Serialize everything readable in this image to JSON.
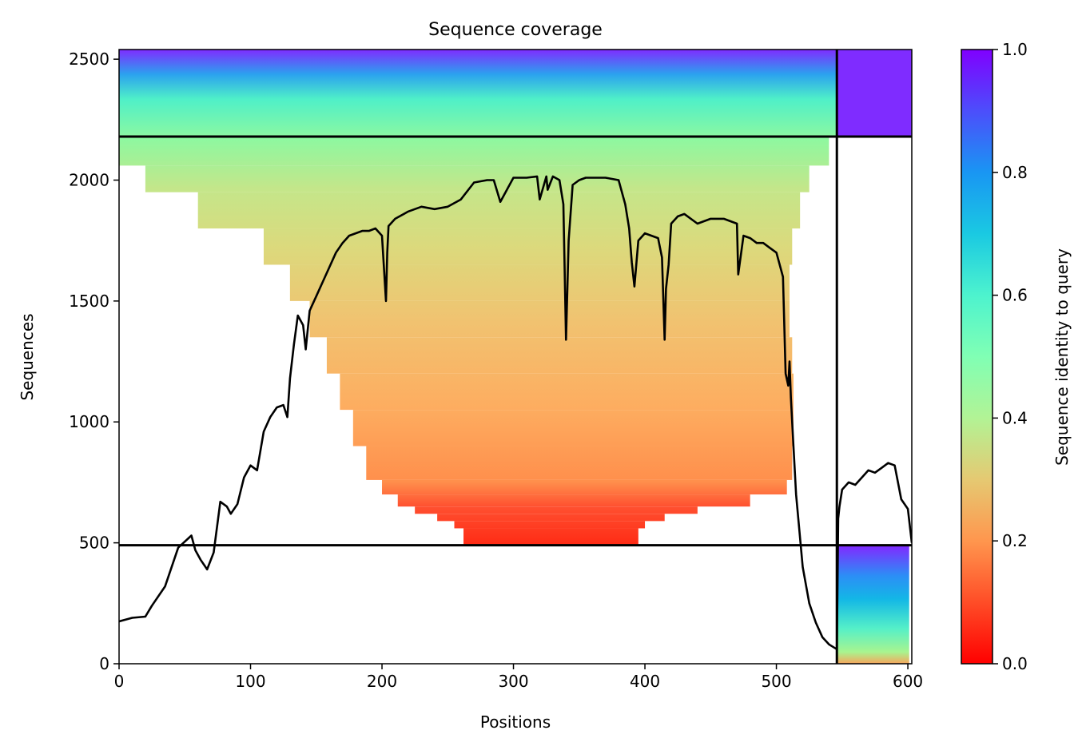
{
  "chart_data": {
    "type": "heatmap",
    "title": "Sequence coverage",
    "xlabel": "Positions",
    "ylabel": "Sequences",
    "xlim": [
      0,
      603
    ],
    "ylim": [
      0,
      2540
    ],
    "xticks": [
      "0",
      "100",
      "200",
      "300",
      "400",
      "500",
      "600"
    ],
    "yticks": [
      "0",
      "500",
      "1000",
      "1500",
      "2000",
      "2500"
    ],
    "grid": false,
    "colorbar": {
      "label": "Sequence identity to query",
      "colormap": "rainbow",
      "range": [
        0.0,
        1.0
      ],
      "ticks": [
        "0.0",
        "0.2",
        "0.4",
        "0.6",
        "0.8",
        "1.0"
      ]
    },
    "segment_boundaries": {
      "positions": [
        546
      ],
      "sequences": [
        490,
        2180
      ]
    },
    "coverage_line": {
      "color": "#000000",
      "x": [
        0,
        10,
        20,
        25,
        35,
        45,
        55,
        58,
        62,
        67,
        72,
        77,
        82,
        85,
        90,
        95,
        100,
        105,
        110,
        115,
        120,
        125,
        128,
        130,
        133,
        136,
        140,
        142,
        145,
        150,
        155,
        160,
        165,
        170,
        175,
        180,
        185,
        190,
        195,
        200,
        203,
        204,
        205,
        210,
        220,
        230,
        240,
        250,
        260,
        270,
        280,
        285,
        290,
        300,
        310,
        318,
        320,
        325,
        326,
        330,
        335,
        338,
        340,
        342,
        345,
        350,
        355,
        360,
        370,
        380,
        385,
        388,
        390,
        392,
        395,
        400,
        410,
        413,
        415,
        416,
        418,
        420,
        425,
        430,
        440,
        450,
        460,
        470,
        471,
        475,
        480,
        485,
        490,
        495,
        500,
        505,
        507,
        509,
        510,
        511,
        513,
        515,
        520,
        525,
        530,
        535,
        540,
        546,
        547,
        548,
        550,
        555,
        560,
        565,
        570,
        575,
        580,
        585,
        590,
        595,
        600,
        603
      ],
      "y": [
        175,
        190,
        195,
        240,
        320,
        480,
        530,
        470,
        430,
        390,
        460,
        670,
        650,
        620,
        660,
        770,
        820,
        800,
        960,
        1020,
        1060,
        1070,
        1020,
        1180,
        1320,
        1440,
        1400,
        1300,
        1460,
        1520,
        1580,
        1640,
        1700,
        1740,
        1770,
        1780,
        1790,
        1790,
        1800,
        1770,
        1500,
        1700,
        1810,
        1840,
        1870,
        1890,
        1880,
        1890,
        1920,
        1990,
        2000,
        2000,
        1910,
        2010,
        2010,
        2015,
        1920,
        2015,
        1960,
        2015,
        2000,
        1900,
        1340,
        1750,
        1980,
        2000,
        2010,
        2010,
        2010,
        2000,
        1900,
        1800,
        1660,
        1560,
        1750,
        1780,
        1760,
        1680,
        1340,
        1550,
        1650,
        1820,
        1850,
        1860,
        1820,
        1840,
        1840,
        1820,
        1610,
        1770,
        1760,
        1740,
        1740,
        1720,
        1700,
        1600,
        1200,
        1150,
        1250,
        1100,
        900,
        700,
        400,
        250,
        170,
        110,
        80,
        60,
        600,
        650,
        720,
        750,
        740,
        770,
        800,
        790,
        810,
        830,
        820,
        680,
        640,
        500
      ]
    },
    "background_tracks": [
      {
        "seg": "A",
        "top": 2540,
        "bottom": 2180,
        "start": 0,
        "end": 546
      },
      {
        "seg": "A",
        "top": 2180,
        "bottom": 2060,
        "start": 0,
        "end": 540
      },
      {
        "seg": "A",
        "top": 2060,
        "bottom": 1950,
        "start": 20,
        "end": 525
      },
      {
        "seg": "A",
        "top": 1950,
        "bottom": 1800,
        "start": 60,
        "end": 518
      },
      {
        "seg": "A",
        "top": 1800,
        "bottom": 1650,
        "start": 110,
        "end": 512
      },
      {
        "seg": "A",
        "top": 1650,
        "bottom": 1500,
        "start": 130,
        "end": 510
      },
      {
        "seg": "A",
        "top": 1500,
        "bottom": 1350,
        "start": 145,
        "end": 510
      },
      {
        "seg": "A",
        "top": 1350,
        "bottom": 1200,
        "start": 158,
        "end": 512
      },
      {
        "seg": "A",
        "top": 1200,
        "bottom": 1050,
        "start": 168,
        "end": 513
      },
      {
        "seg": "A",
        "top": 1050,
        "bottom": 900,
        "start": 178,
        "end": 513
      },
      {
        "seg": "A",
        "top": 900,
        "bottom": 760,
        "start": 188,
        "end": 512
      },
      {
        "seg": "A",
        "top": 760,
        "bottom": 700,
        "start": 200,
        "end": 508
      },
      {
        "seg": "A",
        "top": 700,
        "bottom": 650,
        "start": 212,
        "end": 480
      },
      {
        "seg": "A",
        "top": 650,
        "bottom": 620,
        "start": 225,
        "end": 440
      },
      {
        "seg": "A",
        "top": 620,
        "bottom": 590,
        "start": 242,
        "end": 415
      },
      {
        "seg": "A",
        "top": 590,
        "bottom": 560,
        "start": 255,
        "end": 400
      },
      {
        "seg": "A",
        "top": 560,
        "bottom": 490,
        "start": 262,
        "end": 395
      },
      {
        "seg": "B",
        "top": 2540,
        "bottom": 2180,
        "start": 546,
        "end": 603
      },
      {
        "seg": "B",
        "top": 490,
        "bottom": 0,
        "start": 546,
        "end": 601
      }
    ]
  }
}
